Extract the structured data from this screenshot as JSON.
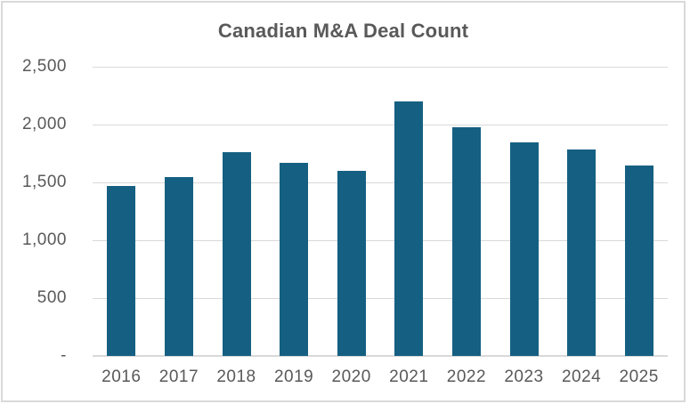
{
  "chart_data": {
    "type": "bar",
    "title": "Canadian M&A Deal Count",
    "categories": [
      "2016",
      "2017",
      "2018",
      "2019",
      "2020",
      "2021",
      "2022",
      "2023",
      "2024",
      "2025"
    ],
    "values": [
      1470,
      1550,
      1765,
      1670,
      1600,
      2200,
      1980,
      1850,
      1785,
      1645
    ],
    "xlabel": "",
    "ylabel": "",
    "ylim": [
      0,
      2500
    ],
    "y_ticks": [
      {
        "value": 2500,
        "label": "2,500"
      },
      {
        "value": 2000,
        "label": "2,000"
      },
      {
        "value": 1500,
        "label": "1,500"
      },
      {
        "value": 1000,
        "label": "1,000"
      },
      {
        "value": 500,
        "label": "500"
      },
      {
        "value": 0,
        "label": "-"
      }
    ],
    "grid": true,
    "legend": false,
    "colors": {
      "bar": "#156082",
      "gridline": "#D9D9D9",
      "axis_line": "#D9D9D9",
      "text": "#595959",
      "title_text": "#595959",
      "frame_border": "#D9D9D9",
      "background": "#FFFFFF"
    }
  }
}
